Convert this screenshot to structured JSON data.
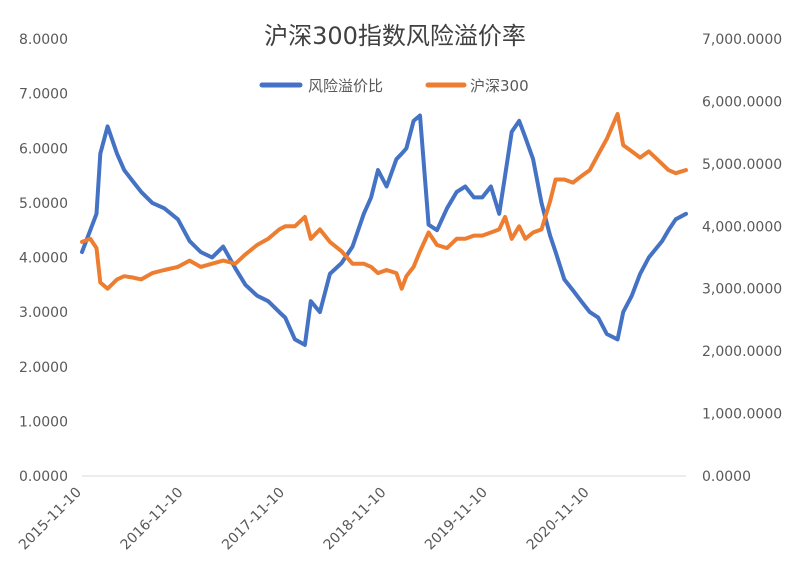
{
  "chart_data": {
    "type": "line",
    "title": "沪深300指数风险溢价率",
    "legend_position": "top",
    "grid": false,
    "x_tick_labels": [
      "2015-11-10",
      "2016-11-10",
      "2017-11-10",
      "2018-11-10",
      "2019-11-10",
      "2020-11-10"
    ],
    "x_range": [
      "2015-11-10",
      "2021-10-22"
    ],
    "y_left": {
      "range": [
        0,
        8
      ],
      "tick_labels": [
        "0.0000",
        "1.0000",
        "2.0000",
        "3.0000",
        "4.0000",
        "5.0000",
        "6.0000",
        "7.0000",
        "8.0000"
      ]
    },
    "y_right": {
      "range": [
        0,
        7000
      ],
      "tick_labels": [
        "0.0000",
        "1,000.0000",
        "2,000.0000",
        "3,000.0000",
        "4,000.0000",
        "5,000.0000",
        "6,000.0000",
        "7,000.0000"
      ]
    },
    "series": [
      {
        "name": "风险溢价比",
        "axis": "left",
        "color": "#4472C4",
        "x": [
          "2015-11-10",
          "2015-12-10",
          "2016-01-01",
          "2016-01-15",
          "2016-02-10",
          "2016-03-15",
          "2016-04-10",
          "2016-05-10",
          "2016-06-10",
          "2016-07-20",
          "2016-09-01",
          "2016-10-20",
          "2016-12-01",
          "2017-01-10",
          "2017-02-20",
          "2017-04-01",
          "2017-05-15",
          "2017-06-20",
          "2017-08-01",
          "2017-09-10",
          "2017-10-20",
          "2017-11-10",
          "2017-12-15",
          "2018-01-20",
          "2018-02-10",
          "2018-03-15",
          "2018-04-20",
          "2018-06-01",
          "2018-07-10",
          "2018-08-20",
          "2018-09-15",
          "2018-10-10",
          "2018-11-10",
          "2018-12-15",
          "2019-01-03",
          "2019-01-20",
          "2019-02-15",
          "2019-03-10",
          "2019-04-10",
          "2019-05-10",
          "2019-06-15",
          "2019-07-20",
          "2019-08-20",
          "2019-09-20",
          "2019-10-20",
          "2019-11-20",
          "2019-12-20",
          "2020-01-10",
          "2020-02-03",
          "2020-03-01",
          "2020-03-23",
          "2020-04-20",
          "2020-05-20",
          "2020-06-20",
          "2020-07-10",
          "2020-08-10",
          "2020-09-10",
          "2020-10-10",
          "2020-11-10",
          "2020-12-10",
          "2021-01-10",
          "2021-02-18",
          "2021-03-10",
          "2021-04-10",
          "2021-05-10",
          "2021-06-10",
          "2021-07-28",
          "2021-08-20",
          "2021-09-15",
          "2021-10-22"
        ],
        "values": [
          4.1,
          4.5,
          4.8,
          5.9,
          6.4,
          5.9,
          5.6,
          5.4,
          5.2,
          5.0,
          4.9,
          4.7,
          4.3,
          4.1,
          4.0,
          4.2,
          3.8,
          3.5,
          3.3,
          3.2,
          3.0,
          2.9,
          2.5,
          2.4,
          3.2,
          3.0,
          3.7,
          3.9,
          4.2,
          4.8,
          5.1,
          5.6,
          5.3,
          5.8,
          5.9,
          6.0,
          6.5,
          6.6,
          4.6,
          4.5,
          4.9,
          5.2,
          5.3,
          5.1,
          5.1,
          5.3,
          4.8,
          5.5,
          6.3,
          6.5,
          6.2,
          5.8,
          5.0,
          4.4,
          4.1,
          3.6,
          3.4,
          3.2,
          3.0,
          2.9,
          2.6,
          2.5,
          3.0,
          3.3,
          3.7,
          4.0,
          4.3,
          4.5,
          4.7,
          4.8
        ]
      },
      {
        "name": "沪深300",
        "axis": "right",
        "color": "#ED7D31",
        "x": [
          "2015-11-10",
          "2015-12-10",
          "2016-01-01",
          "2016-01-15",
          "2016-02-10",
          "2016-03-15",
          "2016-04-10",
          "2016-05-10",
          "2016-06-10",
          "2016-07-20",
          "2016-09-01",
          "2016-10-20",
          "2016-12-01",
          "2017-01-10",
          "2017-02-20",
          "2017-04-01",
          "2017-05-15",
          "2017-06-20",
          "2017-08-01",
          "2017-09-10",
          "2017-10-20",
          "2017-11-10",
          "2017-12-15",
          "2018-01-20",
          "2018-02-10",
          "2018-03-15",
          "2018-04-20",
          "2018-06-01",
          "2018-07-10",
          "2018-08-20",
          "2018-09-15",
          "2018-10-10",
          "2018-11-10",
          "2018-12-15",
          "2019-01-03",
          "2019-01-20",
          "2019-02-15",
          "2019-03-10",
          "2019-04-10",
          "2019-05-10",
          "2019-06-15",
          "2019-07-20",
          "2019-08-20",
          "2019-09-20",
          "2019-10-20",
          "2019-11-20",
          "2019-12-20",
          "2020-01-10",
          "2020-02-03",
          "2020-03-01",
          "2020-03-23",
          "2020-04-20",
          "2020-05-20",
          "2020-06-20",
          "2020-07-10",
          "2020-08-10",
          "2020-09-10",
          "2020-10-10",
          "2020-11-10",
          "2020-12-10",
          "2021-01-10",
          "2021-02-18",
          "2021-03-10",
          "2021-04-10",
          "2021-05-10",
          "2021-06-10",
          "2021-07-28",
          "2021-08-20",
          "2021-09-15",
          "2021-10-22"
        ],
        "values": [
          3750,
          3800,
          3650,
          3100,
          3000,
          3150,
          3200,
          3180,
          3150,
          3250,
          3300,
          3350,
          3450,
          3350,
          3400,
          3450,
          3400,
          3550,
          3700,
          3800,
          3950,
          4000,
          4000,
          4150,
          3800,
          3950,
          3750,
          3600,
          3400,
          3400,
          3350,
          3250,
          3300,
          3250,
          3000,
          3200,
          3350,
          3600,
          3900,
          3700,
          3650,
          3800,
          3800,
          3850,
          3850,
          3900,
          3950,
          4150,
          3800,
          4000,
          3800,
          3900,
          3950,
          4400,
          4750,
          4750,
          4700,
          4800,
          4900,
          5150,
          5400,
          5800,
          5300,
          5200,
          5100,
          5200,
          5000,
          4900,
          4850,
          4900
        ]
      }
    ]
  }
}
